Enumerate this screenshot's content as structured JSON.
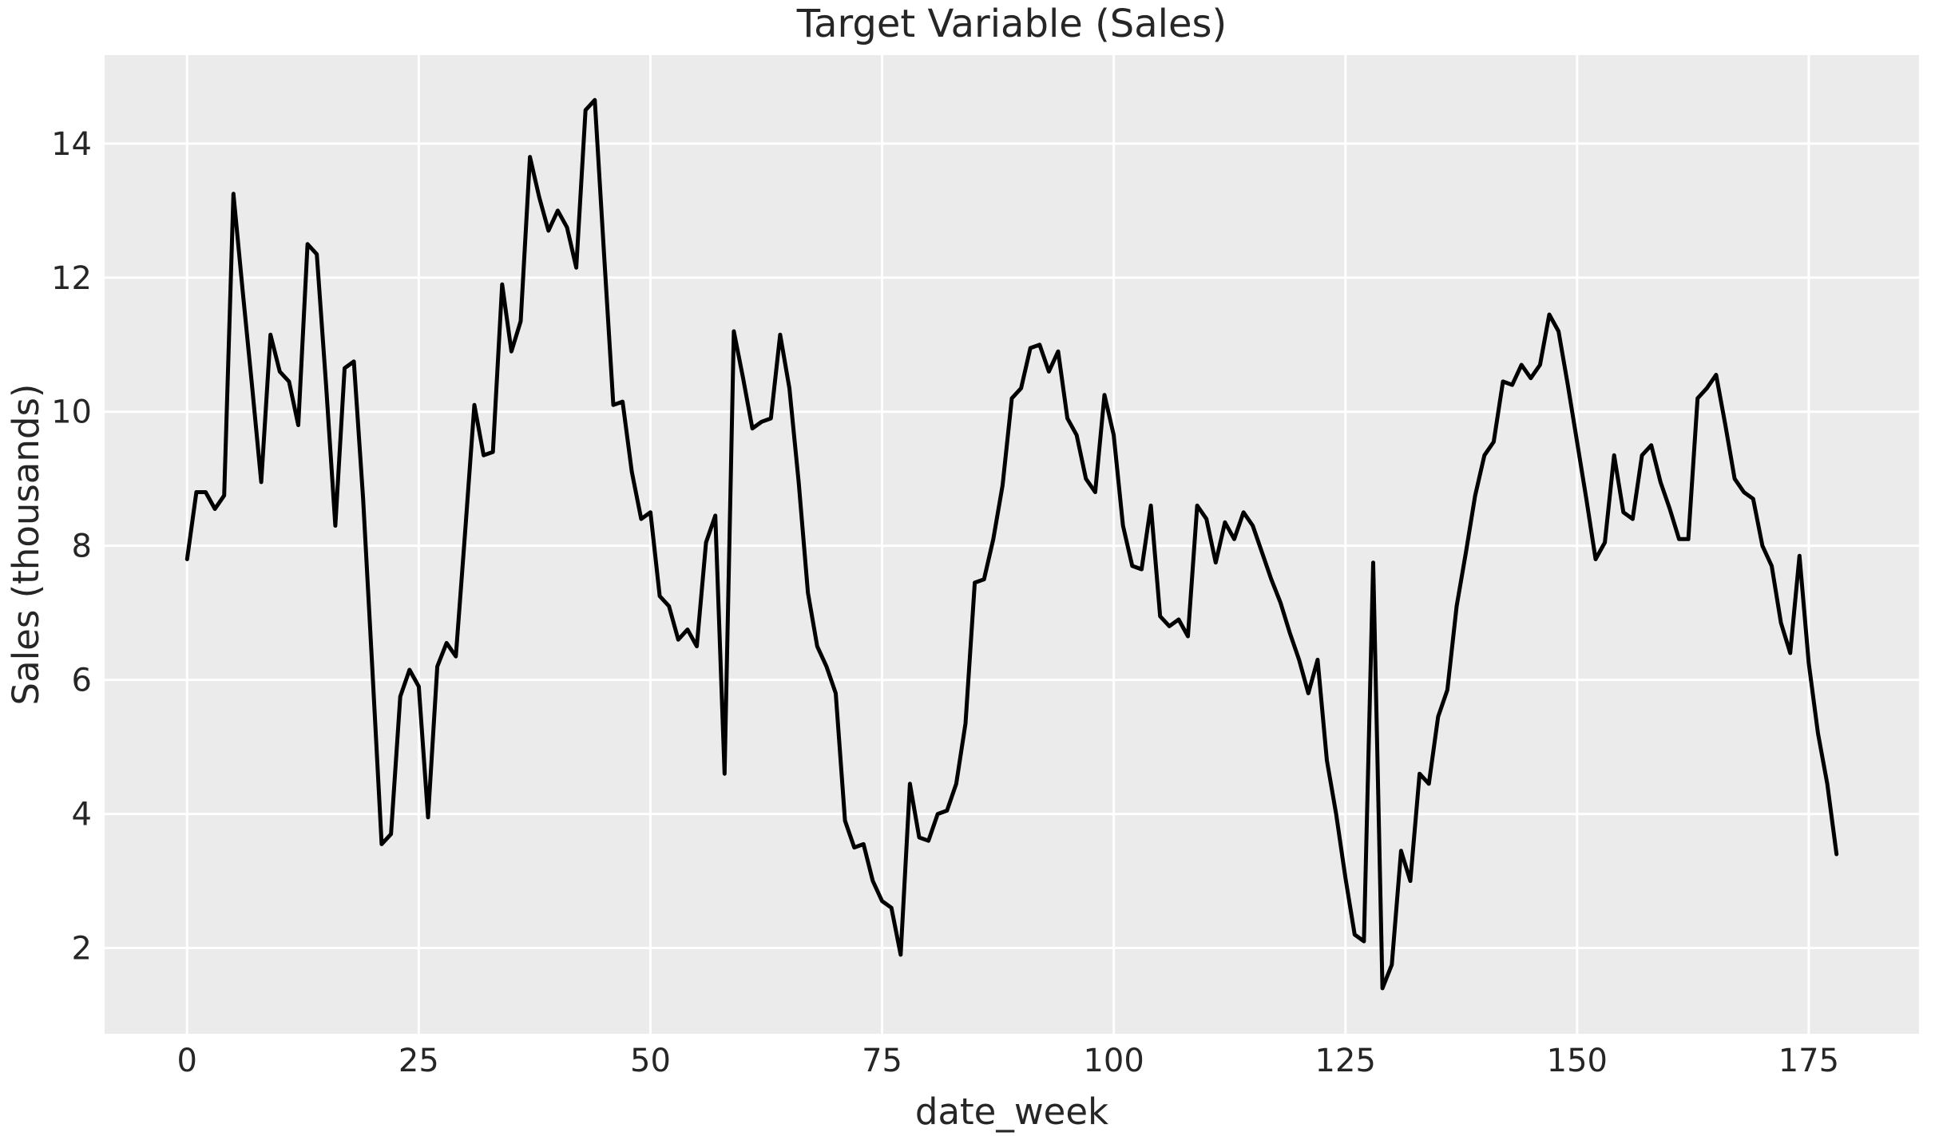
{
  "chart_data": {
    "type": "line",
    "title": "Target Variable (Sales)",
    "xlabel": "date_week",
    "ylabel": "Sales (thousands)",
    "x_ticks": [
      0,
      25,
      50,
      75,
      100,
      125,
      150,
      175
    ],
    "y_ticks": [
      2,
      4,
      6,
      8,
      10,
      12,
      14
    ],
    "xlim": [
      -8.9,
      186.9
    ],
    "ylim": [
      0.72,
      15.32
    ],
    "grid": true,
    "legend_position": "none",
    "colors": {
      "figure_background": "#ffffff",
      "axes_background": "#ebebeb",
      "gridline": "#ffffff",
      "text": "#262626",
      "line": "#000000"
    },
    "series": [
      {
        "name": "Sales",
        "color": "#000000",
        "line_width": 5,
        "x_start": 0,
        "x_step": 1,
        "values": [
          7.8,
          8.8,
          8.8,
          8.55,
          8.75,
          13.25,
          11.8,
          10.4,
          8.95,
          11.15,
          10.6,
          10.45,
          9.8,
          12.5,
          12.35,
          10.4,
          8.3,
          10.65,
          10.75,
          8.7,
          6.15,
          3.55,
          3.7,
          5.75,
          6.15,
          5.9,
          3.95,
          6.2,
          6.55,
          6.35,
          8.2,
          10.1,
          9.35,
          9.4,
          11.9,
          10.9,
          11.35,
          13.8,
          13.2,
          12.7,
          13.0,
          12.75,
          12.15,
          14.5,
          14.65,
          12.35,
          10.1,
          10.15,
          9.1,
          8.4,
          8.5,
          7.25,
          7.1,
          6.6,
          6.75,
          6.5,
          8.05,
          8.45,
          4.6,
          11.2,
          10.5,
          9.75,
          9.85,
          9.9,
          11.15,
          10.35,
          8.95,
          7.3,
          6.5,
          6.2,
          5.8,
          3.9,
          3.5,
          3.55,
          3.0,
          2.7,
          2.6,
          1.9,
          4.45,
          3.65,
          3.6,
          4.0,
          4.05,
          4.45,
          5.35,
          7.45,
          7.5,
          8.1,
          8.9,
          10.2,
          10.35,
          10.95,
          11.0,
          10.6,
          10.9,
          9.9,
          9.65,
          9.0,
          8.8,
          10.25,
          9.65,
          8.3,
          7.7,
          7.65,
          8.6,
          6.95,
          6.8,
          6.9,
          6.65,
          8.6,
          8.4,
          7.75,
          8.35,
          8.1,
          8.5,
          8.3,
          7.9,
          7.5,
          7.15,
          6.7,
          6.3,
          5.8,
          6.3,
          4.8,
          4.0,
          3.05,
          2.2,
          2.1,
          7.75,
          1.4,
          1.75,
          3.45,
          3.0,
          4.6,
          4.45,
          5.45,
          5.85,
          7.1,
          7.9,
          8.75,
          9.35,
          9.55,
          10.45,
          10.4,
          10.7,
          10.5,
          10.7,
          11.45,
          11.2,
          10.4,
          9.55,
          8.7,
          7.8,
          8.05,
          9.35,
          8.5,
          8.4,
          9.35,
          9.5,
          8.95,
          8.55,
          8.1,
          8.1,
          10.2,
          10.35,
          10.55,
          9.8,
          9.0,
          8.8,
          8.7,
          8.0,
          7.7,
          6.85,
          6.4,
          7.85,
          6.25,
          5.2,
          4.45,
          3.4
        ]
      }
    ]
  }
}
